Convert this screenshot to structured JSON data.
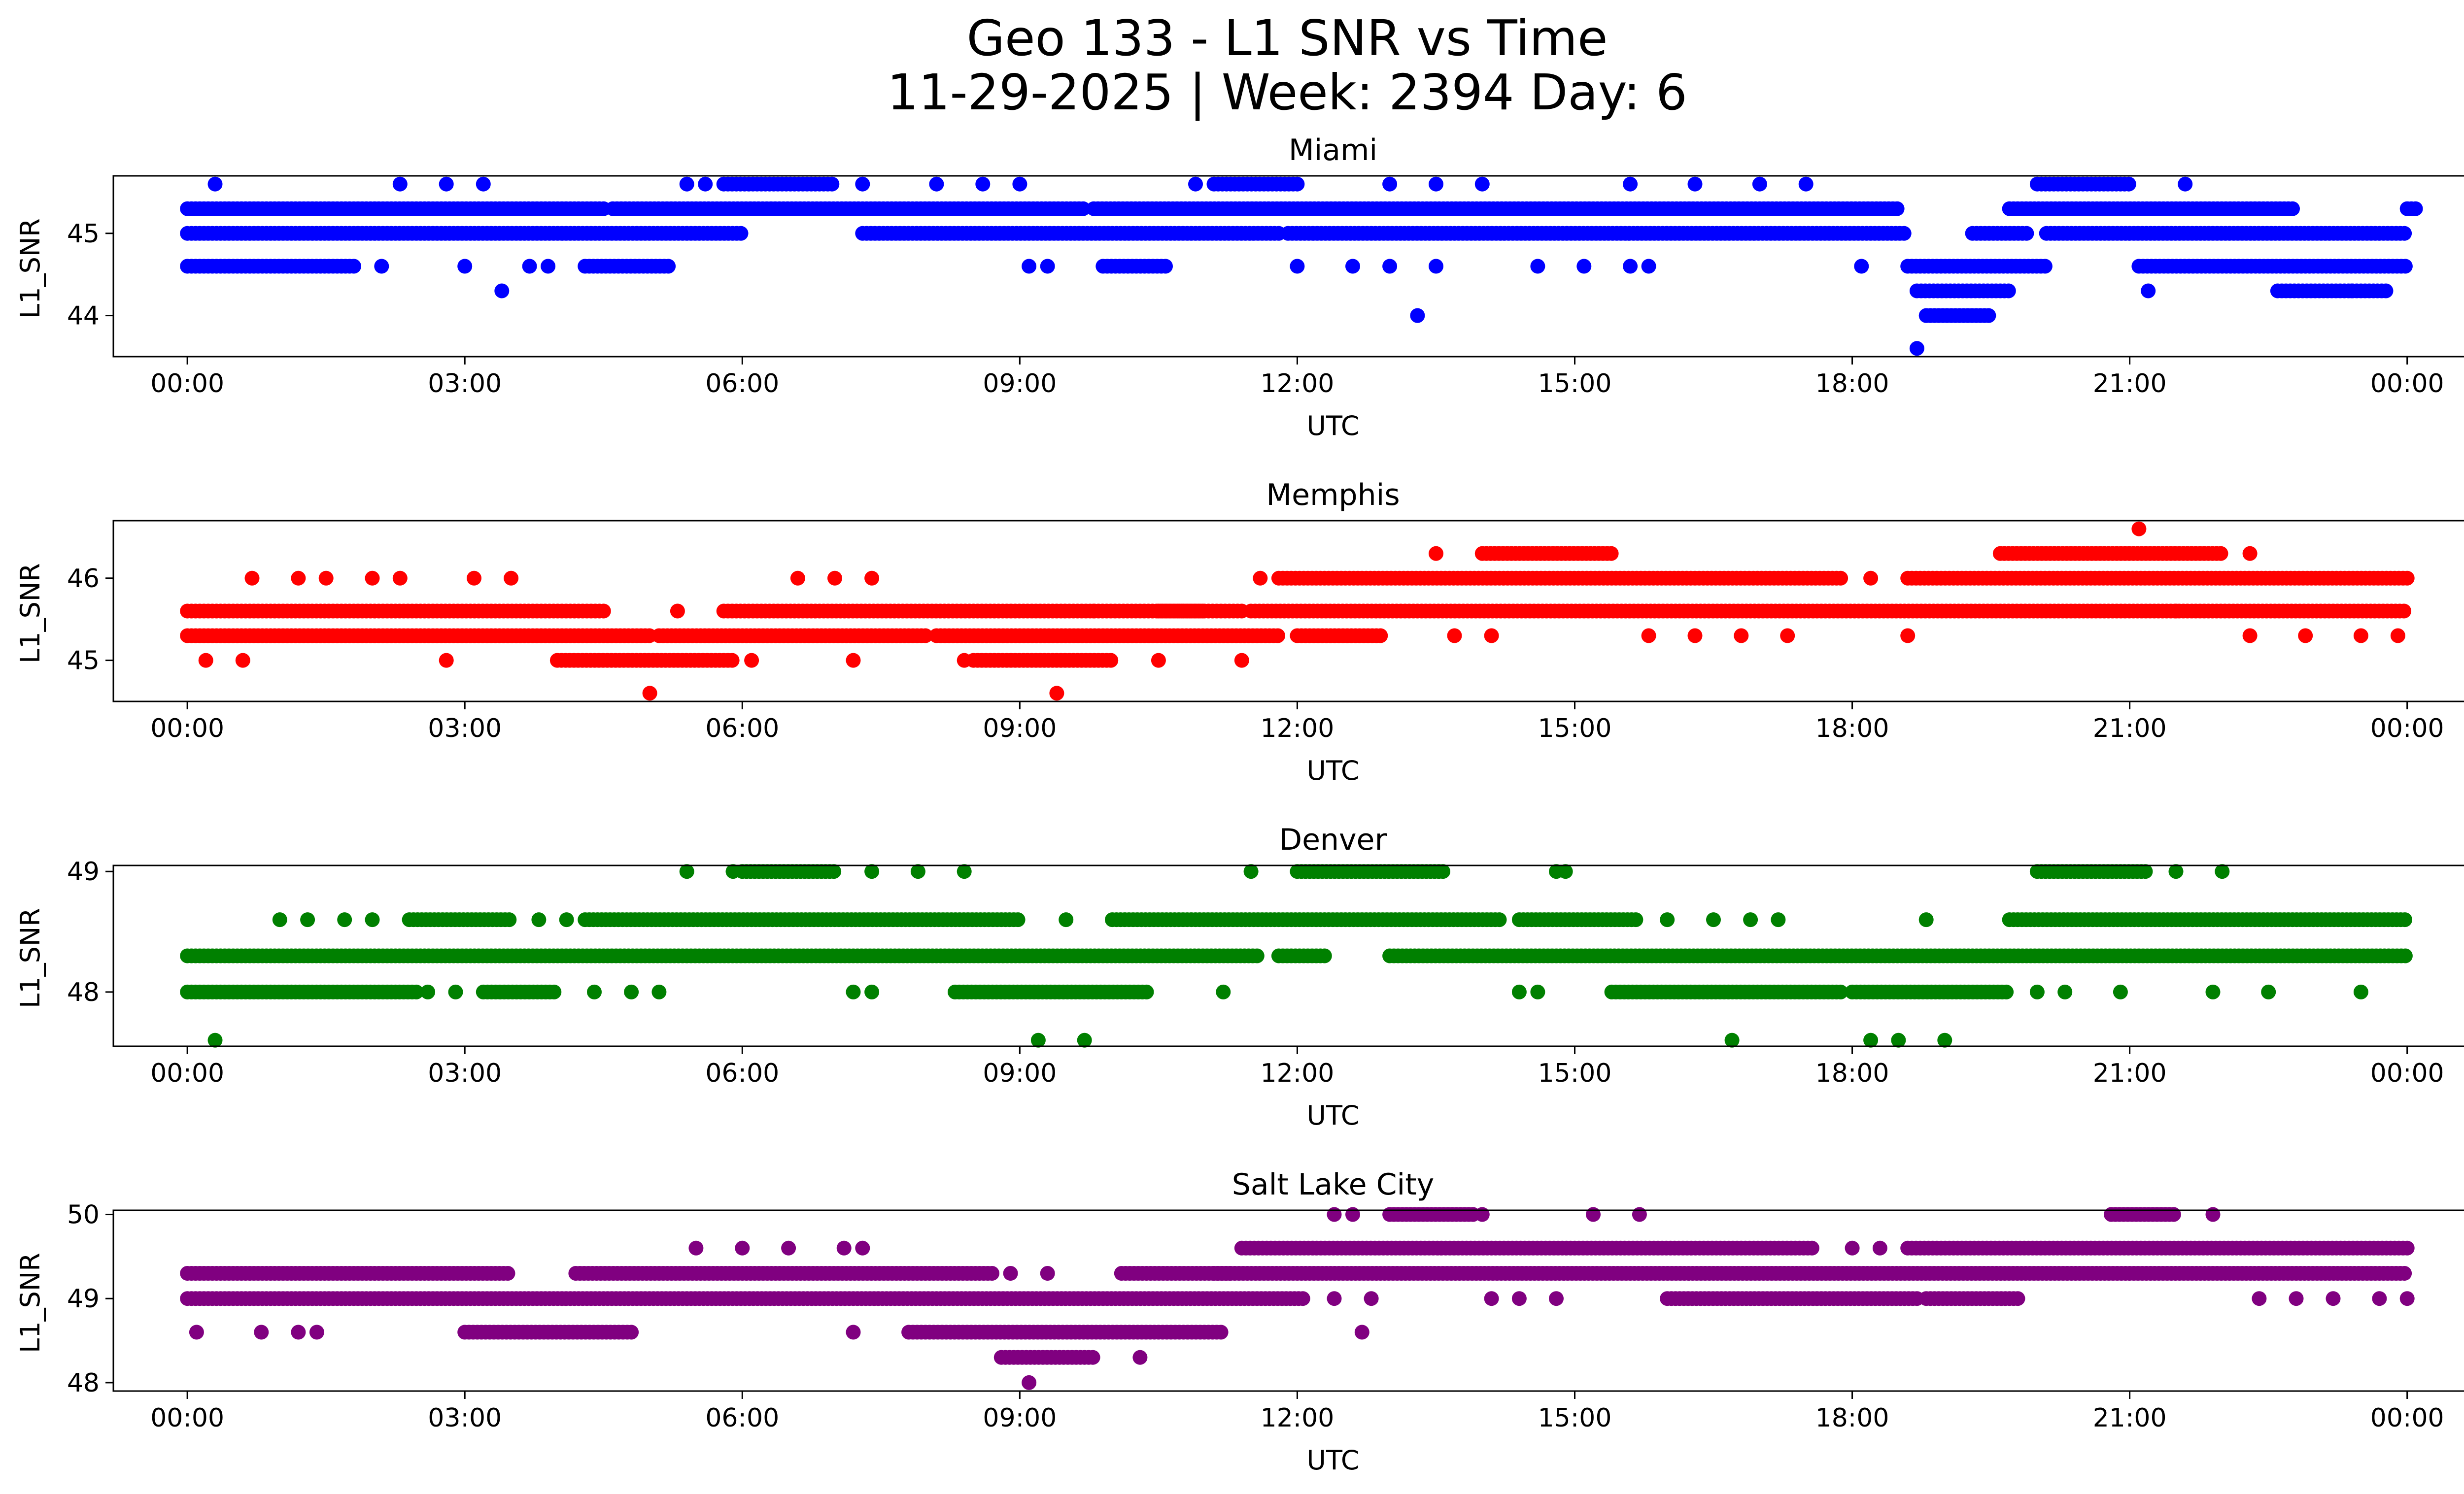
{
  "figure": {
    "title_line1": "Geo 133 - L1 SNR vs Time",
    "title_line2": "11-29-2025 | Week: 2394 Day: 6"
  },
  "chart_data": [
    {
      "type": "scatter",
      "title": "Miami",
      "xlabel": "UTC",
      "ylabel": "L1_SNR",
      "color": "#0000ff",
      "x_unit": "hours UTC",
      "xlim": [
        -0.8,
        25.6
      ],
      "ylim": [
        43.5,
        45.7
      ],
      "yticks": [
        44,
        45
      ],
      "xticks": [
        0,
        3,
        6,
        9,
        12,
        15,
        18,
        21,
        24
      ],
      "xtick_labels": [
        "00:00",
        "03:00",
        "06:00",
        "09:00",
        "12:00",
        "15:00",
        "18:00",
        "21:00",
        "00:00"
      ],
      "bands": [
        {
          "y": 45.3,
          "segments": [
            [
              0,
              4.5
            ],
            [
              4.6,
              9.7
            ],
            [
              9.8,
              18.5
            ],
            [
              19.7,
              22.8
            ],
            [
              24.0,
              24.1
            ]
          ]
        },
        {
          "y": 45.0,
          "segments": [
            [
              0,
              6.0
            ],
            [
              7.3,
              11.8
            ],
            [
              11.9,
              18.6
            ],
            [
              19.3,
              19.9
            ],
            [
              20.1,
              24.0
            ]
          ]
        },
        {
          "y": 44.6,
          "segments": [
            [
              0,
              1.8
            ],
            [
              4.3,
              5.2
            ],
            [
              9.9,
              10.6
            ],
            [
              18.6,
              20.1
            ],
            [
              21.1,
              24.0
            ]
          ]
        },
        {
          "y": 44.3,
          "segments": [
            [
              18.7,
              19.7
            ],
            [
              22.6,
              23.8
            ]
          ]
        },
        {
          "y": 44.0,
          "segments": [
            [
              18.8,
              19.5
            ]
          ]
        },
        {
          "y": 45.6,
          "segments": [
            [
              5.8,
              7.0
            ],
            [
              11.1,
              12.0
            ],
            [
              20.0,
              21.0
            ]
          ]
        }
      ],
      "points": [
        [
          0.3,
          45.6
        ],
        [
          2.3,
          45.6
        ],
        [
          2.8,
          45.6
        ],
        [
          3.2,
          45.6
        ],
        [
          5.4,
          45.6
        ],
        [
          5.6,
          45.6
        ],
        [
          7.3,
          45.6
        ],
        [
          8.1,
          45.6
        ],
        [
          8.6,
          45.6
        ],
        [
          9.0,
          45.6
        ],
        [
          10.9,
          45.6
        ],
        [
          13.0,
          45.6
        ],
        [
          13.5,
          45.6
        ],
        [
          14.0,
          45.6
        ],
        [
          15.6,
          45.6
        ],
        [
          16.3,
          45.6
        ],
        [
          17.0,
          45.6
        ],
        [
          17.5,
          45.6
        ],
        [
          21.6,
          45.6
        ],
        [
          2.1,
          44.6
        ],
        [
          3.0,
          44.6
        ],
        [
          3.7,
          44.6
        ],
        [
          3.9,
          44.6
        ],
        [
          9.1,
          44.6
        ],
        [
          9.3,
          44.6
        ],
        [
          12.0,
          44.6
        ],
        [
          12.6,
          44.6
        ],
        [
          13.0,
          44.6
        ],
        [
          13.5,
          44.6
        ],
        [
          14.6,
          44.6
        ],
        [
          15.1,
          44.6
        ],
        [
          15.6,
          44.6
        ],
        [
          15.8,
          44.6
        ],
        [
          18.1,
          44.6
        ],
        [
          3.4,
          44.3
        ],
        [
          21.2,
          44.3
        ],
        [
          23.4,
          44.3
        ],
        [
          13.3,
          44.0
        ],
        [
          18.7,
          43.6
        ]
      ]
    },
    {
      "type": "scatter",
      "title": "Memphis",
      "xlabel": "UTC",
      "ylabel": "L1_SNR",
      "color": "#ff0000",
      "x_unit": "hours UTC",
      "xlim": [
        -0.8,
        25.6
      ],
      "ylim": [
        44.5,
        46.7
      ],
      "yticks": [
        45,
        46
      ],
      "xticks": [
        0,
        3,
        6,
        9,
        12,
        15,
        18,
        21,
        24
      ],
      "xtick_labels": [
        "00:00",
        "03:00",
        "06:00",
        "09:00",
        "12:00",
        "15:00",
        "18:00",
        "21:00",
        "00:00"
      ],
      "bands": [
        {
          "y": 45.6,
          "segments": [
            [
              0,
              4.5
            ],
            [
              5.8,
              11.0
            ],
            [
              10.5,
              11.4
            ],
            [
              11.5,
              24.0
            ]
          ]
        },
        {
          "y": 45.3,
          "segments": [
            [
              0,
              5.0
            ],
            [
              5.1,
              8.0
            ],
            [
              8.1,
              11.8
            ],
            [
              12.0,
              12.9
            ]
          ]
        },
        {
          "y": 45.0,
          "segments": [
            [
              4.0,
              5.9
            ],
            [
              8.5,
              10.0
            ]
          ]
        },
        {
          "y": 46.0,
          "segments": [
            [
              11.8,
              17.9
            ],
            [
              18.6,
              24.0
            ]
          ]
        },
        {
          "y": 46.3,
          "segments": [
            [
              14.0,
              15.4
            ],
            [
              19.6,
              22.0
            ]
          ]
        }
      ],
      "points": [
        [
          0.7,
          46.0
        ],
        [
          1.2,
          46.0
        ],
        [
          1.5,
          46.0
        ],
        [
          2.0,
          46.0
        ],
        [
          2.3,
          46.0
        ],
        [
          3.1,
          46.0
        ],
        [
          3.5,
          46.0
        ],
        [
          6.6,
          46.0
        ],
        [
          7.0,
          46.0
        ],
        [
          7.4,
          46.0
        ],
        [
          11.6,
          46.0
        ],
        [
          13.5,
          46.3
        ],
        [
          22.3,
          46.3
        ],
        [
          18.2,
          46.0
        ],
        [
          21.1,
          46.6
        ],
        [
          5.3,
          45.6
        ],
        [
          9.8,
          45.6
        ],
        [
          21.5,
          45.6
        ],
        [
          14.1,
          45.3
        ],
        [
          15.8,
          45.3
        ],
        [
          16.3,
          45.3
        ],
        [
          16.8,
          45.3
        ],
        [
          17.3,
          45.3
        ],
        [
          18.6,
          45.3
        ],
        [
          13.7,
          45.3
        ],
        [
          22.3,
          45.3
        ],
        [
          22.9,
          45.3
        ],
        [
          23.5,
          45.3
        ],
        [
          23.9,
          45.3
        ],
        [
          0.2,
          45.0
        ],
        [
          0.6,
          45.0
        ],
        [
          2.8,
          45.0
        ],
        [
          6.1,
          45.0
        ],
        [
          7.2,
          45.0
        ],
        [
          8.4,
          45.0
        ],
        [
          10.5,
          45.0
        ],
        [
          11.4,
          45.0
        ],
        [
          5.0,
          44.6
        ],
        [
          9.4,
          44.6
        ]
      ]
    },
    {
      "type": "scatter",
      "title": "Denver",
      "xlabel": "UTC",
      "ylabel": "L1_SNR",
      "color": "#008000",
      "x_unit": "hours UTC",
      "xlim": [
        -0.8,
        25.6
      ],
      "ylim": [
        47.55,
        49.05
      ],
      "yticks": [
        48,
        49
      ],
      "xticks": [
        0,
        3,
        6,
        9,
        12,
        15,
        18,
        21,
        24
      ],
      "xtick_labels": [
        "00:00",
        "03:00",
        "06:00",
        "09:00",
        "12:00",
        "15:00",
        "18:00",
        "21:00",
        "00:00"
      ],
      "bands": [
        {
          "y": 48.3,
          "segments": [
            [
              0,
              11.6
            ],
            [
              11.8,
              12.3
            ],
            [
              13.0,
              24.0
            ]
          ]
        },
        {
          "y": 48.0,
          "segments": [
            [
              0,
              2.5
            ],
            [
              3.2,
              4.0
            ],
            [
              8.3,
              10.4
            ],
            [
              15.4,
              17.9
            ],
            [
              18.0,
              19.7
            ]
          ]
        },
        {
          "y": 48.6,
          "segments": [
            [
              2.4,
              3.5
            ],
            [
              4.3,
              9.0
            ],
            [
              10.0,
              14.2
            ],
            [
              14.4,
              15.7
            ],
            [
              19.7,
              24.0
            ]
          ]
        },
        {
          "y": 49.0,
          "segments": [
            [
              6.0,
              7.0
            ],
            [
              12.0,
              13.6
            ],
            [
              20.0,
              21.2
            ]
          ]
        }
      ],
      "points": [
        [
          5.4,
          49.0
        ],
        [
          5.9,
          49.0
        ],
        [
          7.4,
          49.0
        ],
        [
          7.9,
          49.0
        ],
        [
          8.4,
          49.0
        ],
        [
          11.5,
          49.0
        ],
        [
          14.8,
          49.0
        ],
        [
          14.9,
          49.0
        ],
        [
          21.5,
          49.0
        ],
        [
          22.0,
          49.0
        ],
        [
          1.0,
          48.6
        ],
        [
          1.3,
          48.6
        ],
        [
          1.7,
          48.6
        ],
        [
          2.0,
          48.6
        ],
        [
          3.8,
          48.6
        ],
        [
          4.1,
          48.6
        ],
        [
          9.5,
          48.6
        ],
        [
          16.0,
          48.6
        ],
        [
          16.5,
          48.6
        ],
        [
          16.9,
          48.6
        ],
        [
          17.2,
          48.6
        ],
        [
          18.8,
          48.6
        ],
        [
          2.6,
          48.0
        ],
        [
          2.9,
          48.0
        ],
        [
          4.4,
          48.0
        ],
        [
          4.8,
          48.0
        ],
        [
          5.1,
          48.0
        ],
        [
          7.2,
          48.0
        ],
        [
          7.4,
          48.0
        ],
        [
          11.2,
          48.0
        ],
        [
          14.4,
          48.0
        ],
        [
          14.6,
          48.0
        ],
        [
          20.0,
          48.0
        ],
        [
          20.3,
          48.0
        ],
        [
          20.9,
          48.0
        ],
        [
          21.9,
          48.0
        ],
        [
          22.5,
          48.0
        ],
        [
          23.5,
          48.0
        ],
        [
          0.3,
          47.6
        ],
        [
          9.2,
          47.6
        ],
        [
          9.7,
          47.6
        ],
        [
          16.7,
          47.6
        ],
        [
          18.2,
          47.6
        ],
        [
          18.5,
          47.6
        ],
        [
          19.0,
          47.6
        ]
      ]
    },
    {
      "type": "scatter",
      "title": "Salt Lake City",
      "xlabel": "UTC",
      "ylabel": "L1_SNR",
      "color": "#800080",
      "x_unit": "hours UTC",
      "xlim": [
        -0.8,
        25.6
      ],
      "ylim": [
        47.9,
        50.05
      ],
      "yticks": [
        48,
        49,
        50
      ],
      "xticks": [
        0,
        3,
        6,
        9,
        12,
        15,
        18,
        21,
        24
      ],
      "xtick_labels": [
        "00:00",
        "03:00",
        "06:00",
        "09:00",
        "12:00",
        "15:00",
        "18:00",
        "21:00",
        "00:00"
      ],
      "bands": [
        {
          "y": 49.3,
          "segments": [
            [
              0,
              3.5
            ],
            [
              4.2,
              8.7
            ],
            [
              10.1,
              11.3
            ],
            [
              11.1,
              24.0
            ]
          ]
        },
        {
          "y": 49.0,
          "segments": [
            [
              0,
              12.1
            ],
            [
              16.0,
              18.7
            ],
            [
              18.8,
              19.8
            ]
          ]
        },
        {
          "y": 48.6,
          "segments": [
            [
              3.0,
              4.8
            ],
            [
              7.8,
              11.2
            ]
          ]
        },
        {
          "y": 49.6,
          "segments": [
            [
              11.4,
              17.6
            ],
            [
              18.6,
              24.0
            ]
          ]
        },
        {
          "y": 50.0,
          "segments": [
            [
              13.0,
              13.9
            ],
            [
              20.8,
              21.5
            ]
          ]
        },
        {
          "y": 48.3,
          "segments": [
            [
              8.8,
              9.8
            ]
          ]
        }
      ],
      "points": [
        [
          5.5,
          49.6
        ],
        [
          6.0,
          49.6
        ],
        [
          6.5,
          49.6
        ],
        [
          7.1,
          49.6
        ],
        [
          7.3,
          49.6
        ],
        [
          18.0,
          49.6
        ],
        [
          18.3,
          49.6
        ],
        [
          12.4,
          50.0
        ],
        [
          12.6,
          50.0
        ],
        [
          14.0,
          50.0
        ],
        [
          15.2,
          50.0
        ],
        [
          15.7,
          50.0
        ],
        [
          21.9,
          50.0
        ],
        [
          8.9,
          49.3
        ],
        [
          9.3,
          49.3
        ],
        [
          12.4,
          49.0
        ],
        [
          12.8,
          49.0
        ],
        [
          14.1,
          49.0
        ],
        [
          14.4,
          49.0
        ],
        [
          14.8,
          49.0
        ],
        [
          22.4,
          49.0
        ],
        [
          22.8,
          49.0
        ],
        [
          23.2,
          49.0
        ],
        [
          23.7,
          49.0
        ],
        [
          24.0,
          49.0
        ],
        [
          0.1,
          48.6
        ],
        [
          0.8,
          48.6
        ],
        [
          1.2,
          48.6
        ],
        [
          1.4,
          48.6
        ],
        [
          7.2,
          48.6
        ],
        [
          12.7,
          48.6
        ],
        [
          10.3,
          48.3
        ],
        [
          9.1,
          48.0
        ]
      ]
    }
  ]
}
